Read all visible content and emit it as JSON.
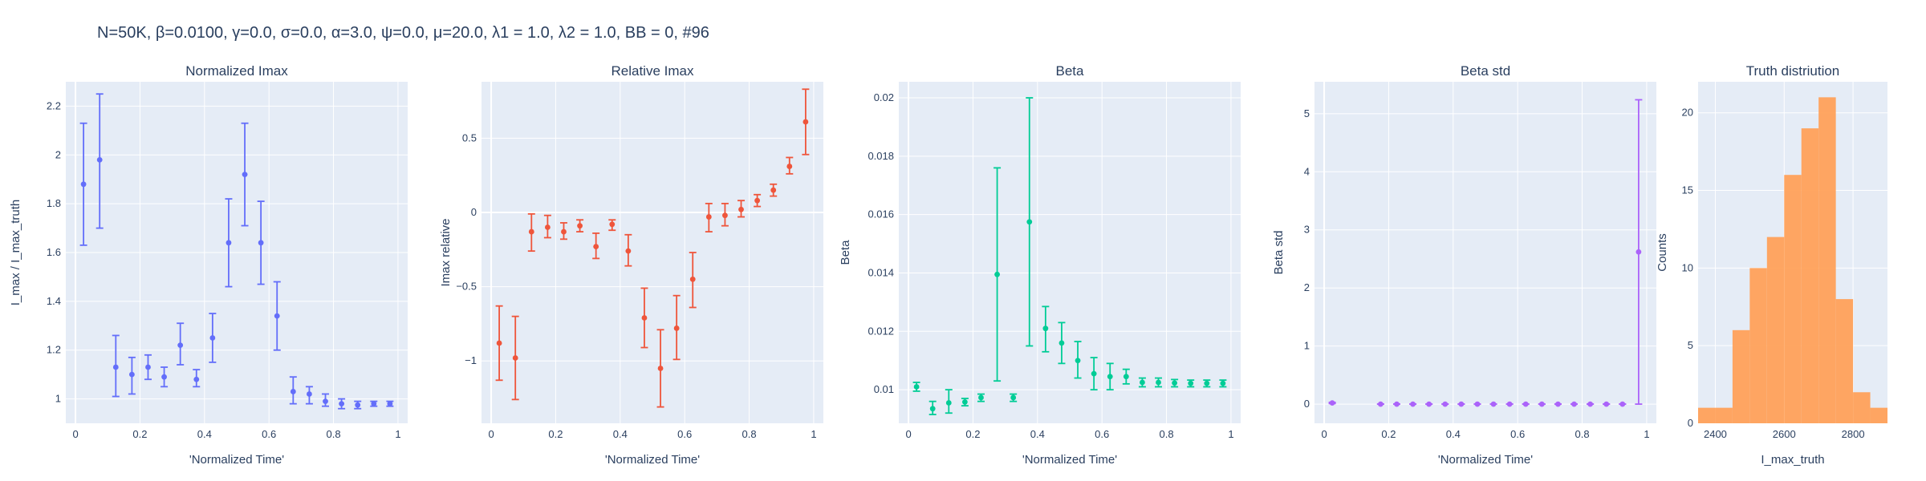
{
  "figure_title": "N=50K, β=0.0100, γ=0.0, σ=0.0,  α=3.0, ψ=0.0, μ=20.0, λ1 = 1.0, λ2 = 1.0, BB = 0, #96",
  "chart_data": [
    {
      "type": "scatter",
      "title": "Normalized Imax",
      "xlabel": "'Normalized Time'",
      "ylabel": "I_max / I_max_truth",
      "color": "#636efa",
      "xlim": [
        -0.03,
        1.03
      ],
      "ylim": [
        0.9,
        2.3
      ],
      "xticks": [
        0,
        0.2,
        0.4,
        0.6,
        0.8,
        1
      ],
      "xtick_labels": [
        "0",
        "0.2",
        "0.4",
        "0.6",
        "0.8",
        "1"
      ],
      "yticks": [
        1,
        1.2,
        1.4,
        1.6,
        1.8,
        2,
        2.2
      ],
      "ytick_labels": [
        "1",
        "1.2",
        "1.4",
        "1.6",
        "1.8",
        "2",
        "2.2"
      ],
      "points": [
        {
          "x": 0.025,
          "y": 1.88,
          "lo": 1.63,
          "hi": 2.13
        },
        {
          "x": 0.075,
          "y": 1.98,
          "lo": 1.7,
          "hi": 2.25
        },
        {
          "x": 0.125,
          "y": 1.13,
          "lo": 1.01,
          "hi": 1.26
        },
        {
          "x": 0.175,
          "y": 1.1,
          "lo": 1.02,
          "hi": 1.17
        },
        {
          "x": 0.225,
          "y": 1.13,
          "lo": 1.08,
          "hi": 1.18
        },
        {
          "x": 0.275,
          "y": 1.09,
          "lo": 1.05,
          "hi": 1.13
        },
        {
          "x": 0.325,
          "y": 1.22,
          "lo": 1.14,
          "hi": 1.31
        },
        {
          "x": 0.375,
          "y": 1.08,
          "lo": 1.05,
          "hi": 1.12
        },
        {
          "x": 0.425,
          "y": 1.25,
          "lo": 1.15,
          "hi": 1.35
        },
        {
          "x": 0.475,
          "y": 1.64,
          "lo": 1.46,
          "hi": 1.82
        },
        {
          "x": 0.525,
          "y": 1.92,
          "lo": 1.71,
          "hi": 2.13
        },
        {
          "x": 0.575,
          "y": 1.64,
          "lo": 1.47,
          "hi": 1.81
        },
        {
          "x": 0.625,
          "y": 1.34,
          "lo": 1.2,
          "hi": 1.48
        },
        {
          "x": 0.675,
          "y": 1.03,
          "lo": 0.98,
          "hi": 1.09
        },
        {
          "x": 0.725,
          "y": 1.02,
          "lo": 0.98,
          "hi": 1.05
        },
        {
          "x": 0.775,
          "y": 0.99,
          "lo": 0.97,
          "hi": 1.02
        },
        {
          "x": 0.825,
          "y": 0.98,
          "lo": 0.96,
          "hi": 1.0
        },
        {
          "x": 0.875,
          "y": 0.975,
          "lo": 0.96,
          "hi": 0.99
        },
        {
          "x": 0.925,
          "y": 0.98,
          "lo": 0.97,
          "hi": 0.99
        },
        {
          "x": 0.975,
          "y": 0.98,
          "lo": 0.97,
          "hi": 0.99
        }
      ]
    },
    {
      "type": "scatter",
      "title": "Relative Imax",
      "xlabel": "'Normalized Time'",
      "ylabel": "Imax relative",
      "color": "#ef553b",
      "xlim": [
        -0.03,
        1.03
      ],
      "ylim": [
        -1.42,
        0.88
      ],
      "xticks": [
        0,
        0.2,
        0.4,
        0.6,
        0.8,
        1
      ],
      "xtick_labels": [
        "0",
        "0.2",
        "0.4",
        "0.6",
        "0.8",
        "1"
      ],
      "yticks": [
        -1,
        -0.5,
        0,
        0.5
      ],
      "ytick_labels": [
        "−1",
        "−0.5",
        "0",
        "0.5"
      ],
      "zeroline": true,
      "points": [
        {
          "x": 0.025,
          "y": -0.88,
          "lo": -1.13,
          "hi": -0.63
        },
        {
          "x": 0.075,
          "y": -0.98,
          "lo": -1.26,
          "hi": -0.7
        },
        {
          "x": 0.125,
          "y": -0.13,
          "lo": -0.26,
          "hi": -0.01
        },
        {
          "x": 0.175,
          "y": -0.1,
          "lo": -0.17,
          "hi": -0.02
        },
        {
          "x": 0.225,
          "y": -0.13,
          "lo": -0.18,
          "hi": -0.07
        },
        {
          "x": 0.275,
          "y": -0.09,
          "lo": -0.13,
          "hi": -0.05
        },
        {
          "x": 0.325,
          "y": -0.23,
          "lo": -0.31,
          "hi": -0.14
        },
        {
          "x": 0.375,
          "y": -0.08,
          "lo": -0.12,
          "hi": -0.05
        },
        {
          "x": 0.425,
          "y": -0.26,
          "lo": -0.36,
          "hi": -0.15
        },
        {
          "x": 0.475,
          "y": -0.71,
          "lo": -0.91,
          "hi": -0.51
        },
        {
          "x": 0.525,
          "y": -1.05,
          "lo": -1.31,
          "hi": -0.79
        },
        {
          "x": 0.575,
          "y": -0.78,
          "lo": -0.99,
          "hi": -0.56
        },
        {
          "x": 0.625,
          "y": -0.45,
          "lo": -0.64,
          "hi": -0.27
        },
        {
          "x": 0.675,
          "y": -0.03,
          "lo": -0.13,
          "hi": 0.06
        },
        {
          "x": 0.725,
          "y": -0.02,
          "lo": -0.09,
          "hi": 0.06
        },
        {
          "x": 0.775,
          "y": 0.02,
          "lo": -0.03,
          "hi": 0.08
        },
        {
          "x": 0.825,
          "y": 0.08,
          "lo": 0.04,
          "hi": 0.12
        },
        {
          "x": 0.875,
          "y": 0.15,
          "lo": 0.11,
          "hi": 0.19
        },
        {
          "x": 0.925,
          "y": 0.31,
          "lo": 0.26,
          "hi": 0.37
        },
        {
          "x": 0.975,
          "y": 0.61,
          "lo": 0.39,
          "hi": 0.83
        }
      ]
    },
    {
      "type": "scatter",
      "title": "Beta",
      "xlabel": "'Normalized Time'",
      "ylabel": "Beta",
      "color": "#00cc96",
      "xlim": [
        -0.03,
        1.03
      ],
      "ylim": [
        0.00885,
        0.02055
      ],
      "xticks": [
        0,
        0.2,
        0.4,
        0.6,
        0.8,
        1
      ],
      "xtick_labels": [
        "0",
        "0.2",
        "0.4",
        "0.6",
        "0.8",
        "1"
      ],
      "yticks": [
        0.01,
        0.012,
        0.014,
        0.016,
        0.018,
        0.02
      ],
      "ytick_labels": [
        "0.01",
        "0.012",
        "0.014",
        "0.016",
        "0.018",
        "0.02"
      ],
      "points": [
        {
          "x": 0.025,
          "y": 0.0101,
          "lo": 0.00995,
          "hi": 0.01025
        },
        {
          "x": 0.075,
          "y": 0.00935,
          "lo": 0.00915,
          "hi": 0.0096
        },
        {
          "x": 0.125,
          "y": 0.00955,
          "lo": 0.0092,
          "hi": 0.01
        },
        {
          "x": 0.175,
          "y": 0.00958,
          "lo": 0.00945,
          "hi": 0.0097
        },
        {
          "x": 0.225,
          "y": 0.00973,
          "lo": 0.0096,
          "hi": 0.00985
        },
        {
          "x": 0.275,
          "y": 0.01395,
          "lo": 0.0103,
          "hi": 0.0176
        },
        {
          "x": 0.325,
          "y": 0.00973,
          "lo": 0.0096,
          "hi": 0.00985
        },
        {
          "x": 0.375,
          "y": 0.01575,
          "lo": 0.0115,
          "hi": 0.02
        },
        {
          "x": 0.425,
          "y": 0.0121,
          "lo": 0.0113,
          "hi": 0.01285
        },
        {
          "x": 0.475,
          "y": 0.0116,
          "lo": 0.0109,
          "hi": 0.0123
        },
        {
          "x": 0.525,
          "y": 0.011,
          "lo": 0.0104,
          "hi": 0.01165
        },
        {
          "x": 0.575,
          "y": 0.01055,
          "lo": 0.01,
          "hi": 0.0111
        },
        {
          "x": 0.625,
          "y": 0.01045,
          "lo": 0.01,
          "hi": 0.0109
        },
        {
          "x": 0.675,
          "y": 0.01045,
          "lo": 0.0102,
          "hi": 0.0107
        },
        {
          "x": 0.725,
          "y": 0.01025,
          "lo": 0.0101,
          "hi": 0.0104
        },
        {
          "x": 0.775,
          "y": 0.01025,
          "lo": 0.0101,
          "hi": 0.0104
        },
        {
          "x": 0.825,
          "y": 0.01023,
          "lo": 0.0101,
          "hi": 0.01035
        },
        {
          "x": 0.875,
          "y": 0.01022,
          "lo": 0.0101,
          "hi": 0.01033
        },
        {
          "x": 0.925,
          "y": 0.01022,
          "lo": 0.0101,
          "hi": 0.01033
        },
        {
          "x": 0.975,
          "y": 0.01022,
          "lo": 0.0101,
          "hi": 0.01033
        }
      ]
    },
    {
      "type": "scatter",
      "title": "Beta std",
      "xlabel": "'Normalized Time'",
      "ylabel": "Beta std",
      "color": "#ab63fa",
      "xlim": [
        -0.03,
        1.03
      ],
      "ylim": [
        -0.33,
        5.55
      ],
      "xticks": [
        0,
        0.2,
        0.4,
        0.6,
        0.8,
        1
      ],
      "xtick_labels": [
        "0",
        "0.2",
        "0.4",
        "0.6",
        "0.8",
        "1"
      ],
      "yticks": [
        0,
        1,
        2,
        3,
        4,
        5
      ],
      "ytick_labels": [
        "0",
        "1",
        "2",
        "3",
        "4",
        "5"
      ],
      "points": [
        {
          "x": 0.025,
          "y": 0.02,
          "lo": 0.01,
          "hi": 0.03
        },
        {
          "x": 0.175,
          "y": 0.0,
          "lo": 0.0,
          "hi": 0.0
        },
        {
          "x": 0.225,
          "y": 0.0,
          "lo": 0.0,
          "hi": 0.0
        },
        {
          "x": 0.275,
          "y": 0.0,
          "lo": 0.0,
          "hi": 0.0
        },
        {
          "x": 0.325,
          "y": 0.0,
          "lo": 0.0,
          "hi": 0.0
        },
        {
          "x": 0.375,
          "y": 0.0,
          "lo": 0.0,
          "hi": 0.0
        },
        {
          "x": 0.425,
          "y": 0.0,
          "lo": 0.0,
          "hi": 0.0
        },
        {
          "x": 0.475,
          "y": 0.0,
          "lo": 0.0,
          "hi": 0.0
        },
        {
          "x": 0.525,
          "y": 0.0,
          "lo": 0.0,
          "hi": 0.0
        },
        {
          "x": 0.575,
          "y": 0.0,
          "lo": 0.0,
          "hi": 0.0
        },
        {
          "x": 0.625,
          "y": 0.0,
          "lo": 0.0,
          "hi": 0.0
        },
        {
          "x": 0.675,
          "y": 0.0,
          "lo": 0.0,
          "hi": 0.0
        },
        {
          "x": 0.725,
          "y": 0.0,
          "lo": 0.0,
          "hi": 0.0
        },
        {
          "x": 0.775,
          "y": 0.0,
          "lo": 0.0,
          "hi": 0.0
        },
        {
          "x": 0.825,
          "y": 0.0,
          "lo": 0.0,
          "hi": 0.0
        },
        {
          "x": 0.875,
          "y": 0.0,
          "lo": 0.0,
          "hi": 0.0
        },
        {
          "x": 0.925,
          "y": 0.0,
          "lo": 0.0,
          "hi": 0.0
        },
        {
          "x": 0.975,
          "y": 2.62,
          "lo": 0.0,
          "hi": 5.24
        }
      ]
    },
    {
      "type": "histogram",
      "title": "Truth distriution",
      "xlabel": "I_max_truth",
      "ylabel": "Counts",
      "color": "#ffa15a",
      "xlim": [
        2350,
        2900
      ],
      "ylim": [
        0,
        22
      ],
      "xticks": [
        2400,
        2600,
        2800
      ],
      "xtick_labels": [
        "2400",
        "2600",
        "2800"
      ],
      "yticks": [
        0,
        5,
        10,
        15,
        20
      ],
      "ytick_labels": [
        "0",
        "5",
        "10",
        "15",
        "20"
      ],
      "bins": [
        {
          "x0": 2350,
          "x1": 2400,
          "count": 1
        },
        {
          "x0": 2400,
          "x1": 2450,
          "count": 1
        },
        {
          "x0": 2450,
          "x1": 2500,
          "count": 6
        },
        {
          "x0": 2500,
          "x1": 2550,
          "count": 10
        },
        {
          "x0": 2550,
          "x1": 2600,
          "count": 12
        },
        {
          "x0": 2600,
          "x1": 2650,
          "count": 16
        },
        {
          "x0": 2650,
          "x1": 2700,
          "count": 19
        },
        {
          "x0": 2700,
          "x1": 2750,
          "count": 21
        },
        {
          "x0": 2750,
          "x1": 2800,
          "count": 8
        },
        {
          "x0": 2800,
          "x1": 2850,
          "count": 2
        },
        {
          "x0": 2850,
          "x1": 2900,
          "count": 1
        }
      ]
    }
  ]
}
